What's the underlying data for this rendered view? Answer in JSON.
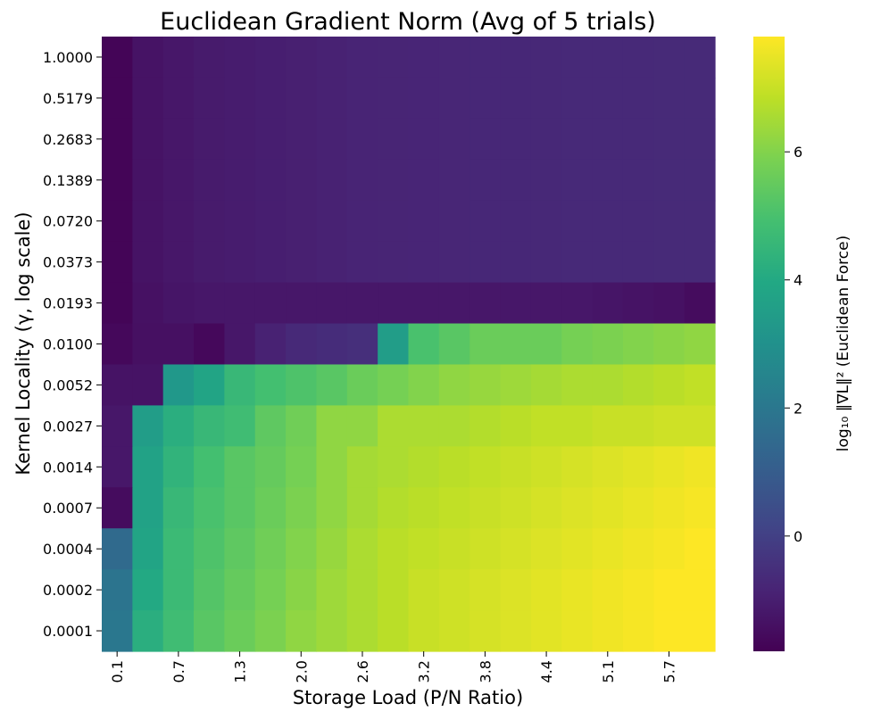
{
  "chart_data": {
    "type": "heatmap",
    "title": "Euclidean Gradient Norm (Avg of 5 trials)",
    "xlabel": "Storage Load (P/N Ratio)",
    "ylabel": "Kernel Locality (γ, log scale)",
    "colorbar_label": "log₁₀ ‖∇L‖² (Euclidean Force)",
    "colormap": "viridis",
    "color_range": [
      -1.8,
      7.8
    ],
    "colorbar_ticks": [
      "0",
      "2",
      "4",
      "6"
    ],
    "x_tick_labels": [
      "0.1",
      "0.7",
      "1.3",
      "2.0",
      "2.6",
      "3.2",
      "3.8",
      "4.4",
      "5.1",
      "5.7"
    ],
    "x_tick_indices": [
      0,
      2,
      4,
      6,
      8,
      10,
      12,
      14,
      16,
      18
    ],
    "x_columns": 20,
    "y_tick_labels": [
      "1.0000",
      "0.5179",
      "0.2683",
      "0.1389",
      "0.0720",
      "0.0373",
      "0.0193",
      "0.0100",
      "0.0052",
      "0.0027",
      "0.0014",
      "0.0007",
      "0.0004",
      "0.0002",
      "0.0001"
    ],
    "values": [
      [
        -1.7,
        -1.3,
        -1.2,
        -1.1,
        -1.05,
        -1.0,
        -0.95,
        -0.9,
        -0.85,
        -0.82,
        -0.8,
        -0.78,
        -0.76,
        -0.74,
        -0.72,
        -0.7,
        -0.69,
        -0.68,
        -0.67,
        -0.66
      ],
      [
        -1.7,
        -1.3,
        -1.2,
        -1.1,
        -1.05,
        -1.0,
        -0.95,
        -0.9,
        -0.85,
        -0.82,
        -0.8,
        -0.78,
        -0.76,
        -0.74,
        -0.72,
        -0.7,
        -0.69,
        -0.68,
        -0.67,
        -0.66
      ],
      [
        -1.7,
        -1.3,
        -1.2,
        -1.1,
        -1.05,
        -1.0,
        -0.95,
        -0.9,
        -0.85,
        -0.82,
        -0.8,
        -0.78,
        -0.76,
        -0.74,
        -0.72,
        -0.7,
        -0.69,
        -0.68,
        -0.67,
        -0.66
      ],
      [
        -1.7,
        -1.3,
        -1.2,
        -1.1,
        -1.05,
        -1.0,
        -0.95,
        -0.9,
        -0.85,
        -0.82,
        -0.8,
        -0.78,
        -0.76,
        -0.74,
        -0.72,
        -0.7,
        -0.69,
        -0.68,
        -0.67,
        -0.66
      ],
      [
        -1.7,
        -1.3,
        -1.2,
        -1.1,
        -1.05,
        -1.0,
        -0.95,
        -0.9,
        -0.85,
        -0.82,
        -0.8,
        -0.78,
        -0.76,
        -0.74,
        -0.72,
        -0.7,
        -0.69,
        -0.68,
        -0.67,
        -0.66
      ],
      [
        -1.7,
        -1.3,
        -1.2,
        -1.1,
        -1.05,
        -1.0,
        -0.95,
        -0.9,
        -0.85,
        -0.82,
        -0.8,
        -0.78,
        -0.76,
        -0.74,
        -0.72,
        -0.7,
        -0.69,
        -0.68,
        -0.67,
        -0.66
      ],
      [
        -1.7,
        -1.35,
        -1.25,
        -1.2,
        -1.2,
        -1.2,
        -1.2,
        -1.2,
        -1.2,
        -1.2,
        -1.2,
        -1.2,
        -1.2,
        -1.2,
        -1.2,
        -1.2,
        -1.25,
        -1.3,
        -1.35,
        -1.5
      ],
      [
        -1.6,
        -1.4,
        -1.4,
        -1.6,
        -1.2,
        -0.9,
        -0.7,
        -0.6,
        -0.5,
        3.5,
        5.0,
        5.3,
        5.6,
        5.6,
        5.6,
        5.8,
        5.9,
        6.0,
        6.1,
        6.2
      ],
      [
        -1.3,
        -1.3,
        3.3,
        3.8,
        4.6,
        4.9,
        5.1,
        5.3,
        5.6,
        5.8,
        6.0,
        6.2,
        6.3,
        6.4,
        6.5,
        6.6,
        6.6,
        6.7,
        6.8,
        6.9
      ],
      [
        -1.2,
        3.5,
        4.2,
        4.6,
        4.8,
        5.4,
        5.7,
        6.2,
        6.2,
        6.6,
        6.6,
        6.6,
        6.7,
        6.8,
        6.9,
        6.9,
        7.0,
        7.0,
        7.1,
        7.1
      ],
      [
        -1.2,
        3.7,
        4.4,
        4.9,
        5.3,
        5.5,
        5.8,
        6.2,
        6.5,
        6.6,
        6.7,
        6.8,
        6.9,
        7.0,
        7.1,
        7.2,
        7.3,
        7.4,
        7.5,
        7.6
      ],
      [
        -1.5,
        3.7,
        4.6,
        5.0,
        5.3,
        5.6,
        5.9,
        6.2,
        6.5,
        6.7,
        6.8,
        6.9,
        7.0,
        7.1,
        7.2,
        7.3,
        7.4,
        7.5,
        7.6,
        7.7
      ],
      [
        1.5,
        3.8,
        4.7,
        5.1,
        5.4,
        5.7,
        6.0,
        6.3,
        6.6,
        6.8,
        6.9,
        7.0,
        7.1,
        7.2,
        7.3,
        7.4,
        7.5,
        7.6,
        7.7,
        7.8
      ],
      [
        1.9,
        4.0,
        4.7,
        5.2,
        5.5,
        5.8,
        6.1,
        6.4,
        6.6,
        6.8,
        7.0,
        7.1,
        7.2,
        7.3,
        7.4,
        7.5,
        7.6,
        7.7,
        7.8,
        7.8
      ],
      [
        2.0,
        4.2,
        4.8,
        5.3,
        5.6,
        5.9,
        6.2,
        6.4,
        6.6,
        6.8,
        7.0,
        7.1,
        7.2,
        7.3,
        7.4,
        7.5,
        7.6,
        7.7,
        7.8,
        7.8
      ]
    ]
  }
}
